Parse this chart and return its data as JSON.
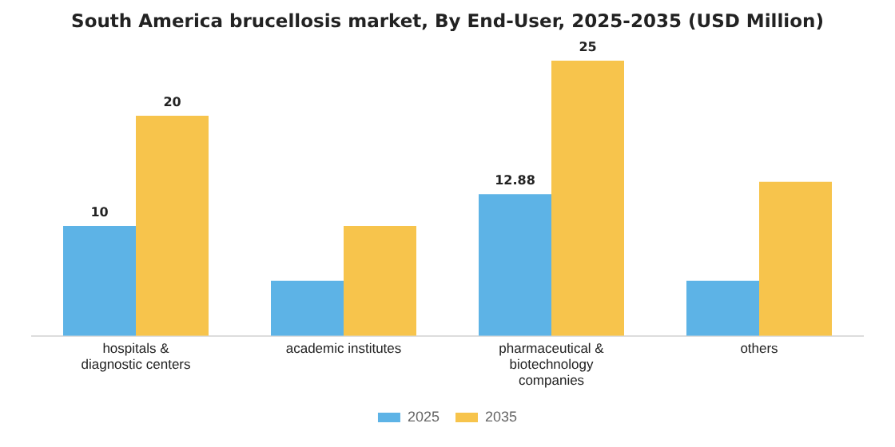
{
  "chart_data": {
    "type": "bar",
    "title": "South America brucellosis market, By End-User, 2025-2035 (USD Million)",
    "categories": [
      "hospitals & diagnostic centers",
      "academic institutes",
      "pharmaceutical & biotechnology companies",
      "others"
    ],
    "series": [
      {
        "name": "2025",
        "color": "#5db3e6",
        "values": [
          10,
          5,
          12.88,
          5
        ],
        "value_labels": [
          "10",
          null,
          "12.88",
          null
        ]
      },
      {
        "name": "2035",
        "color": "#f7c44c",
        "values": [
          20,
          10,
          25,
          14
        ],
        "value_labels": [
          "20",
          null,
          "25",
          null
        ]
      }
    ],
    "grid": false,
    "legend": "bottom"
  }
}
